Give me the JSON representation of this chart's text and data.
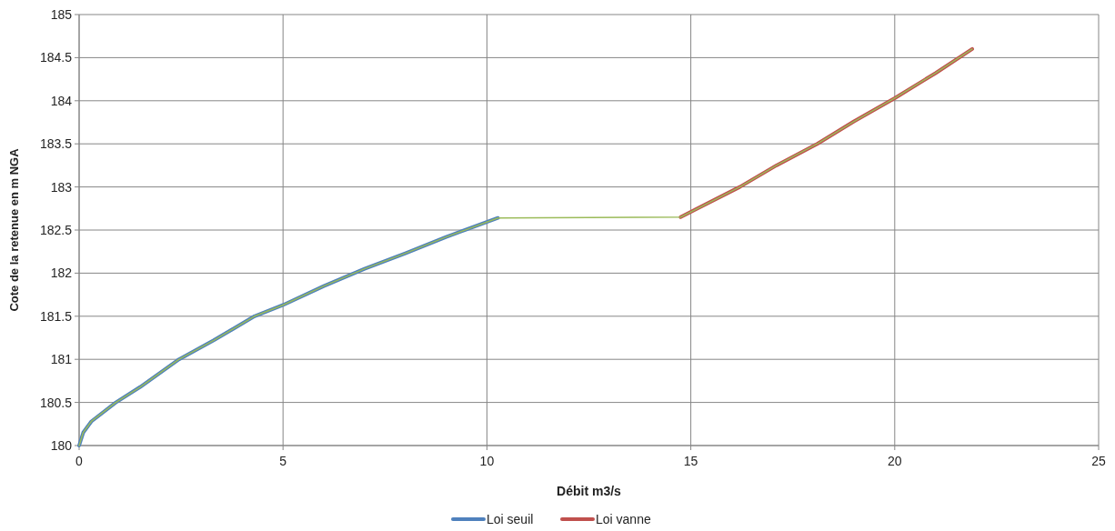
{
  "chart_data": {
    "type": "line",
    "xlabel": "Débit m3/s",
    "ylabel": "Cote de la retenue en m NGA",
    "xlim": [
      0,
      25
    ],
    "xticks": [
      0,
      5,
      10,
      15,
      20,
      25
    ],
    "ylim": [
      180,
      185
    ],
    "yticks": [
      180,
      180.5,
      181,
      181.5,
      182,
      182.5,
      183,
      183.5,
      184,
      184.5,
      185
    ],
    "grid": true,
    "legend": "bottom",
    "marker": "none",
    "line_style": "solid",
    "series": [
      {
        "name": "Loi seuil",
        "color": "#4f81bd",
        "x": [
          0,
          0.1,
          0.3,
          0.9,
          1.5,
          2.45,
          3.3,
          4.3,
          5,
          6,
          7,
          8,
          9,
          10.27
        ],
        "values": [
          180,
          180.15,
          180.28,
          180.5,
          180.68,
          181,
          181.22,
          181.5,
          181.63,
          181.85,
          182.05,
          182.23,
          182.42,
          182.64
        ]
      },
      {
        "name": "Loi vanne",
        "color": "#c0504d",
        "x": [
          14.75,
          16.2,
          17.1,
          18.1,
          19,
          20,
          21,
          21.9
        ],
        "values": [
          182.65,
          183.0,
          183.25,
          183.5,
          183.76,
          184.03,
          184.32,
          184.6
        ]
      },
      {
        "color": "#9bbb59",
        "x": [
          0,
          0.1,
          0.3,
          0.9,
          1.5,
          2.45,
          3.3,
          4.3,
          5,
          6,
          7,
          8,
          9,
          10.27,
          14.75,
          16.2,
          17.1,
          18.1,
          19,
          20,
          21,
          21.9
        ],
        "values": [
          180,
          180.15,
          180.28,
          180.5,
          180.68,
          181,
          181.22,
          181.5,
          181.63,
          181.85,
          182.05,
          182.23,
          182.42,
          182.64,
          182.65,
          183.0,
          183.25,
          183.5,
          183.76,
          184.03,
          184.32,
          184.6
        ]
      }
    ]
  }
}
